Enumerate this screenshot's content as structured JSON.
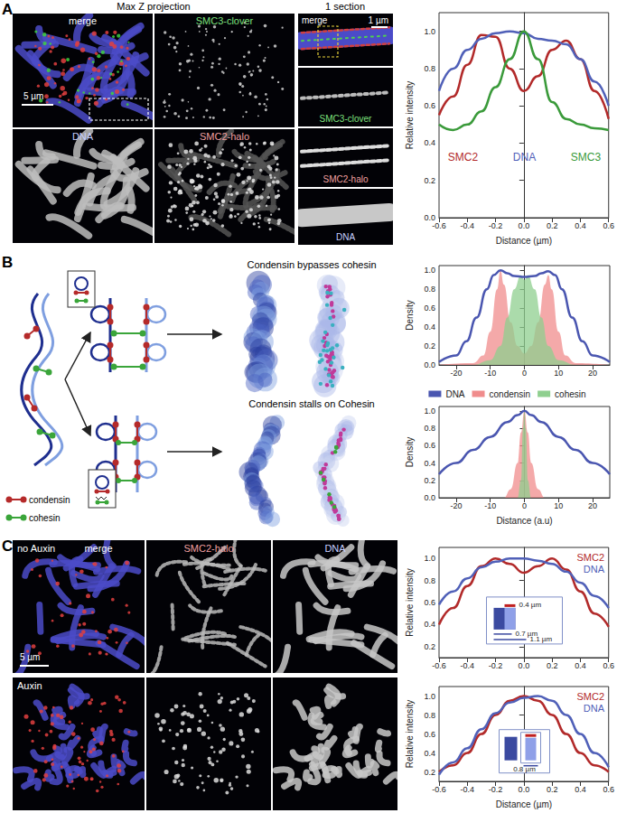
{
  "panels": {
    "A": {
      "label": "A",
      "max_z_title": "Max Z projection",
      "section_title": "1 section",
      "max_z_tiles": [
        "merge",
        "SMC3-clover",
        "DNA",
        "SMC2-halo"
      ],
      "section_strips": [
        "merge",
        "SMC3-clover",
        "SMC2-halo",
        "DNA"
      ],
      "scale_bars": [
        "5 µm",
        "1 µm"
      ]
    },
    "B": {
      "label": "B",
      "outcomes": [
        "Condensin bypasses cohesin",
        "Condensin stalls on Cohesin"
      ],
      "key": [
        "condensin",
        "cohesin"
      ]
    },
    "C": {
      "label": "C",
      "conditions": [
        "no Auxin",
        "Auxin"
      ],
      "tiles": [
        "merge",
        "SMC2-halo",
        "DNA"
      ],
      "scale_bar": "5 µm"
    }
  },
  "chart_data": [
    {
      "type": "line",
      "xlabel": "Distance (µm)",
      "ylabel": "Relative intensity",
      "xlim": [
        -0.6,
        0.6
      ],
      "xticks": [
        -0.6,
        -0.4,
        -0.2,
        {
          "value": 0,
          "label": "0.0"
        },
        0.2,
        0.4,
        0.6
      ],
      "ylim": [
        0,
        1.1
      ],
      "yticks": [
        {
          "value": 0,
          "label": "0.0"
        },
        0.2,
        0.4,
        0.6,
        0.8,
        {
          "value": 1,
          "label": "1.0"
        }
      ],
      "legend": "bottom",
      "x": [
        -0.6,
        -0.5,
        -0.4,
        -0.3,
        -0.2,
        -0.1,
        0,
        0.1,
        0.2,
        0.3,
        0.4,
        0.5,
        0.6
      ],
      "series": [
        {
          "name": "SMC2",
          "color": "#b22a2a",
          "values": [
            0.55,
            0.65,
            0.82,
            0.98,
            0.97,
            0.8,
            0.68,
            0.76,
            0.9,
            0.95,
            0.85,
            0.68,
            0.53
          ]
        },
        {
          "name": "DNA",
          "color": "#5060b8",
          "values": [
            0.68,
            0.8,
            0.9,
            0.96,
            0.99,
            1.0,
            0.99,
            0.96,
            0.95,
            0.93,
            0.85,
            0.73,
            0.6
          ]
        },
        {
          "name": "SMC3",
          "color": "#3a9a3a",
          "values": [
            0.5,
            0.47,
            0.5,
            0.57,
            0.7,
            0.85,
            1.0,
            0.85,
            0.62,
            0.53,
            0.5,
            0.48,
            0.47
          ]
        }
      ]
    },
    {
      "type": "line",
      "ylabel": "Density",
      "xlim": [
        -25,
        25
      ],
      "xticks": [
        -20,
        -10,
        0,
        10,
        20
      ],
      "ylim": [
        0,
        1.05
      ],
      "yticks": [
        {
          "value": 0,
          "label": "0.0"
        },
        0.2,
        0.4,
        0.6,
        0.8,
        {
          "value": 1,
          "label": "1.0"
        }
      ],
      "series": [
        {
          "name": "DNA",
          "type": "line",
          "color": "#4a56b0",
          "x": [
            -25,
            -20,
            -17,
            -14,
            -11,
            -9,
            -7,
            -5,
            -3,
            0,
            3,
            5,
            7,
            9,
            11,
            14,
            17,
            20,
            25
          ],
          "values": [
            0.03,
            0.1,
            0.25,
            0.5,
            0.8,
            0.95,
            1.0,
            0.97,
            0.94,
            0.93,
            0.94,
            0.97,
            0.99,
            0.95,
            0.8,
            0.5,
            0.25,
            0.1,
            0.03
          ]
        },
        {
          "name": "condensin",
          "type": "area",
          "color": "#f08c8c",
          "x": [
            -25,
            -15,
            -12,
            -10,
            -8,
            -7,
            -6,
            -4,
            -2,
            0,
            2,
            4,
            6,
            7,
            8,
            10,
            12,
            15,
            25
          ],
          "values": [
            0,
            0.02,
            0.1,
            0.35,
            0.8,
            1.0,
            0.85,
            0.45,
            0.2,
            0.12,
            0.2,
            0.45,
            0.85,
            0.95,
            0.8,
            0.35,
            0.1,
            0.02,
            0
          ]
        },
        {
          "name": "cohesin",
          "type": "area",
          "color": "#8fcf8f",
          "x": [
            -25,
            -15,
            -10,
            -7,
            -5,
            -3,
            -1,
            0,
            1,
            3,
            5,
            7,
            10,
            15,
            25
          ],
          "values": [
            0,
            0,
            0.05,
            0.2,
            0.5,
            0.8,
            0.95,
            0.9,
            0.95,
            0.8,
            0.5,
            0.2,
            0.05,
            0,
            0
          ]
        }
      ]
    },
    {
      "type": "line",
      "xlabel": "Distance (a.u)",
      "ylabel": "Density",
      "xlim": [
        -25,
        25
      ],
      "xticks": [
        -20,
        -10,
        0,
        10,
        20
      ],
      "ylim": [
        0,
        1.05
      ],
      "yticks": [
        {
          "value": 0,
          "label": "0.0"
        },
        0.2,
        0.4,
        0.6,
        0.8,
        {
          "value": 1,
          "label": "1.0"
        }
      ],
      "legend": "top",
      "series": [
        {
          "name": "DNA",
          "type": "line",
          "color": "#4a56b0",
          "x": [
            -25,
            -20,
            -15,
            -10,
            -5,
            -2,
            0,
            2,
            5,
            10,
            15,
            20,
            25
          ],
          "values": [
            0.27,
            0.4,
            0.55,
            0.7,
            0.87,
            0.95,
            1.0,
            0.95,
            0.87,
            0.7,
            0.55,
            0.4,
            0.27
          ]
        },
        {
          "name": "condensin",
          "type": "area",
          "color": "#f08c8c",
          "x": [
            -25,
            -6,
            -4,
            -2,
            -1,
            0,
            1,
            2,
            4,
            6,
            25
          ],
          "values": [
            0,
            0,
            0.1,
            0.4,
            0.75,
            1.0,
            0.75,
            0.4,
            0.1,
            0,
            0
          ]
        },
        {
          "name": "cohesin",
          "type": "area",
          "color": "#8fcf8f",
          "x": [
            -25,
            -2,
            -1,
            -0.4,
            0,
            0.4,
            1,
            2,
            25
          ],
          "values": [
            0,
            0,
            0.2,
            0.8,
            1.0,
            0.8,
            0.2,
            0,
            0
          ]
        }
      ]
    },
    {
      "type": "line",
      "ylabel": "Relative intensity",
      "xlim": [
        -0.6,
        0.6
      ],
      "xticks": [
        -0.6,
        -0.4,
        -0.2,
        {
          "value": 0,
          "label": "0.0"
        },
        0.2,
        0.4,
        0.6
      ],
      "ylim": [
        0.1,
        1.1
      ],
      "yticks": [
        0.2,
        0.4,
        0.6,
        0.8,
        {
          "value": 1,
          "label": "1.0"
        }
      ],
      "legend": "top right",
      "annotations": [
        "0.4 µm",
        "0.7 µm",
        "1.1 µm"
      ],
      "x": [
        -0.6,
        -0.5,
        -0.4,
        -0.3,
        -0.2,
        -0.1,
        0,
        0.1,
        0.2,
        0.3,
        0.4,
        0.5,
        0.6
      ],
      "series": [
        {
          "name": "SMC2",
          "color": "#b22a2a",
          "values": [
            0.4,
            0.55,
            0.75,
            0.93,
            1.0,
            0.95,
            0.87,
            0.93,
            1.0,
            0.9,
            0.7,
            0.5,
            0.38
          ]
        },
        {
          "name": "DNA",
          "color": "#5060b8",
          "values": [
            0.58,
            0.7,
            0.82,
            0.92,
            0.97,
            1.0,
            1.0,
            0.98,
            0.95,
            0.88,
            0.78,
            0.66,
            0.55
          ]
        }
      ]
    },
    {
      "type": "line",
      "xlabel": "Distance (µm)",
      "ylabel": "Relative intensity",
      "xlim": [
        -0.6,
        0.6
      ],
      "xticks": [
        -0.6,
        -0.4,
        -0.2,
        {
          "value": 0,
          "label": "0.0"
        },
        0.2,
        0.4,
        0.6
      ],
      "ylim": [
        0.1,
        1.1
      ],
      "yticks": [
        0.2,
        0.4,
        0.6,
        0.8,
        {
          "value": 1,
          "label": "1.0"
        }
      ],
      "legend": "top right",
      "annotations": [
        "0.8 µm"
      ],
      "x": [
        -0.6,
        -0.5,
        -0.4,
        -0.3,
        -0.2,
        -0.1,
        0,
        0.1,
        0.2,
        0.3,
        0.4,
        0.5,
        0.6
      ],
      "series": [
        {
          "name": "SMC2",
          "color": "#b22a2a",
          "values": [
            0.2,
            0.27,
            0.4,
            0.6,
            0.8,
            0.95,
            1.0,
            0.95,
            0.8,
            0.6,
            0.4,
            0.27,
            0.2
          ]
        },
        {
          "name": "DNA",
          "color": "#5060b8",
          "values": [
            0.17,
            0.3,
            0.45,
            0.65,
            0.82,
            0.93,
            0.98,
            1.0,
            0.95,
            0.8,
            0.6,
            0.4,
            0.25
          ]
        }
      ]
    }
  ]
}
